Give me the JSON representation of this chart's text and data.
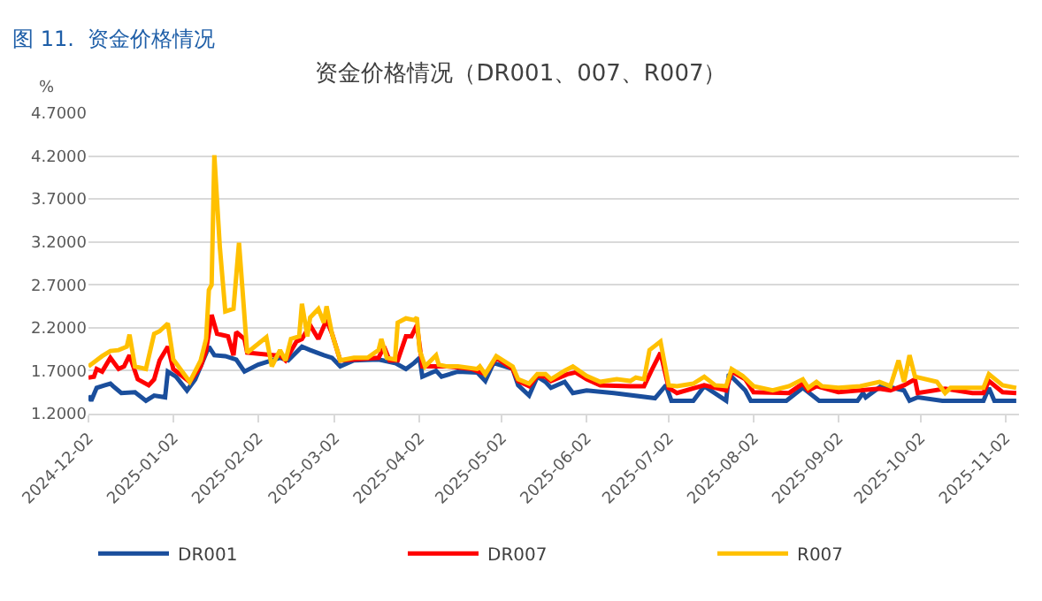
{
  "chart_data": {
    "type": "line",
    "title": "资金价格情况（DR001、007、R007）",
    "ylabel": "%",
    "annotations": [
      "图 11.  资金价格情况"
    ],
    "series": [
      {
        "name": "DR001",
        "color": "#1a4e9c",
        "x": [
          "2024-12-02",
          "2024-12-03",
          "2024-12-05",
          "2024-12-08",
          "2024-12-10",
          "2024-12-11",
          "2024-12-14",
          "2024-12-19",
          "2024-12-23",
          "2024-12-26",
          "2024-12-30",
          "2024-12-31",
          "2025-01-03",
          "2025-01-07",
          "2025-01-10",
          "2025-01-15",
          "2025-01-17",
          "2025-01-21",
          "2025-01-25",
          "2025-01-28",
          "2025-02-02",
          "2025-02-10",
          "2025-02-13",
          "2025-02-18",
          "2025-02-21",
          "2025-02-26",
          "2025-03-01",
          "2025-03-04",
          "2025-03-09",
          "2025-03-18",
          "2025-03-24",
          "2025-03-28",
          "2025-03-31",
          "2025-04-02",
          "2025-04-03",
          "2025-04-08",
          "2025-04-10",
          "2025-04-16",
          "2025-04-23",
          "2025-04-26",
          "2025-04-29",
          "2025-05-06",
          "2025-05-08",
          "2025-05-12",
          "2025-05-15",
          "2025-05-18",
          "2025-05-20",
          "2025-05-25",
          "2025-05-28",
          "2025-06-02",
          "2025-06-12",
          "2025-06-27",
          "2025-07-01",
          "2025-07-03",
          "2025-07-11",
          "2025-07-15",
          "2025-07-23",
          "2025-07-24",
          "2025-07-30",
          "2025-08-01",
          "2025-08-14",
          "2025-08-20",
          "2025-08-26",
          "2025-09-02",
          "2025-09-09",
          "2025-09-11",
          "2025-09-12",
          "2025-09-18",
          "2025-09-26",
          "2025-09-28",
          "2025-10-01",
          "2025-10-10",
          "2025-10-25",
          "2025-10-27",
          "2025-10-29",
          "2025-11-06"
        ],
        "values": [
          1.41,
          1.35,
          1.5,
          1.53,
          1.55,
          1.52,
          1.44,
          1.45,
          1.35,
          1.41,
          1.39,
          1.69,
          1.63,
          1.47,
          1.6,
          1.98,
          1.88,
          1.87,
          1.83,
          1.69,
          1.77,
          1.85,
          1.82,
          1.98,
          1.94,
          1.88,
          1.85,
          1.75,
          1.82,
          1.83,
          1.79,
          1.72,
          1.79,
          1.85,
          1.63,
          1.7,
          1.63,
          1.69,
          1.68,
          1.58,
          1.79,
          1.72,
          1.53,
          1.41,
          1.63,
          1.57,
          1.5,
          1.57,
          1.44,
          1.47,
          1.44,
          1.38,
          1.53,
          1.35,
          1.35,
          1.52,
          1.35,
          1.66,
          1.47,
          1.35,
          1.35,
          1.5,
          1.35,
          1.35,
          1.35,
          1.44,
          1.39,
          1.53,
          1.47,
          1.35,
          1.39,
          1.35,
          1.35,
          1.5,
          1.35,
          1.35
        ]
      },
      {
        "name": "DR007",
        "color": "#ff0000",
        "x": [
          "2024-12-02",
          "2024-12-04",
          "2024-12-05",
          "2024-12-07",
          "2024-12-10",
          "2024-12-13",
          "2024-12-15",
          "2024-12-17",
          "2024-12-20",
          "2024-12-24",
          "2024-12-26",
          "2024-12-28",
          "2024-12-31",
          "2025-01-02",
          "2025-01-08",
          "2025-01-12",
          "2025-01-14",
          "2025-01-16",
          "2025-01-18",
          "2025-01-22",
          "2025-01-24",
          "2025-01-25",
          "2025-01-28",
          "2025-01-29",
          "2025-02-08",
          "2025-02-10",
          "2025-02-12",
          "2025-02-16",
          "2025-02-18",
          "2025-02-21",
          "2025-02-24",
          "2025-02-27",
          "2025-03-01",
          "2025-03-04",
          "2025-03-18",
          "2025-03-20",
          "2025-03-22",
          "2025-03-25",
          "2025-03-28",
          "2025-03-30",
          "2025-04-01",
          "2025-04-03",
          "2025-04-12",
          "2025-04-21",
          "2025-04-26",
          "2025-04-30",
          "2025-05-06",
          "2025-05-08",
          "2025-05-12",
          "2025-05-15",
          "2025-05-18",
          "2025-05-20",
          "2025-05-26",
          "2025-05-29",
          "2025-06-02",
          "2025-06-07",
          "2025-06-18",
          "2025-06-23",
          "2025-06-26",
          "2025-06-29",
          "2025-07-02",
          "2025-07-05",
          "2025-07-15",
          "2025-07-23",
          "2025-07-25",
          "2025-07-30",
          "2025-08-02",
          "2025-08-15",
          "2025-08-20",
          "2025-08-22",
          "2025-08-25",
          "2025-09-02",
          "2025-09-17",
          "2025-09-21",
          "2025-09-26",
          "2025-09-30",
          "2025-10-01",
          "2025-10-11",
          "2025-10-21",
          "2025-10-25",
          "2025-10-27",
          "2025-11-01",
          "2025-11-06"
        ],
        "values": [
          1.62,
          1.63,
          1.72,
          1.69,
          1.85,
          1.72,
          1.75,
          1.88,
          1.6,
          1.53,
          1.6,
          1.82,
          1.98,
          1.72,
          1.57,
          1.75,
          1.94,
          2.35,
          2.13,
          2.1,
          1.88,
          2.15,
          2.07,
          1.91,
          1.88,
          1.88,
          1.82,
          2.04,
          2.07,
          2.23,
          2.07,
          2.29,
          2.13,
          1.82,
          1.85,
          1.98,
          1.82,
          1.82,
          2.1,
          2.1,
          2.23,
          1.75,
          1.75,
          1.72,
          1.66,
          1.85,
          1.72,
          1.58,
          1.52,
          1.64,
          1.63,
          1.58,
          1.66,
          1.68,
          1.6,
          1.53,
          1.52,
          1.52,
          1.72,
          1.91,
          1.5,
          1.44,
          1.53,
          1.47,
          1.69,
          1.6,
          1.45,
          1.44,
          1.55,
          1.47,
          1.52,
          1.45,
          1.49,
          1.47,
          1.53,
          1.6,
          1.44,
          1.49,
          1.44,
          1.44,
          1.58,
          1.45,
          1.44
        ]
      },
      {
        "name": "R007",
        "color": "#ffc000",
        "x": [
          "2024-12-02",
          "2024-12-07",
          "2024-12-10",
          "2024-12-13",
          "2024-12-16",
          "2024-12-17",
          "2024-12-19",
          "2024-12-23",
          "2024-12-26",
          "2024-12-28",
          "2024-12-31",
          "2025-01-02",
          "2025-01-08",
          "2025-01-12",
          "2025-01-14",
          "2025-01-15",
          "2025-01-16",
          "2025-01-17",
          "2025-01-19",
          "2025-01-21",
          "2025-01-24",
          "2025-01-26",
          "2025-01-29",
          "2025-02-05",
          "2025-02-07",
          "2025-02-10",
          "2025-02-12",
          "2025-02-14",
          "2025-02-17",
          "2025-02-18",
          "2025-02-20",
          "2025-02-21",
          "2025-02-24",
          "2025-02-26",
          "2025-02-27",
          "2025-03-01",
          "2025-03-04",
          "2025-03-09",
          "2025-03-14",
          "2025-03-18",
          "2025-03-19",
          "2025-03-21",
          "2025-03-24",
          "2025-03-25",
          "2025-03-28",
          "2025-03-31",
          "2025-04-01",
          "2025-04-02",
          "2025-04-04",
          "2025-04-08",
          "2025-04-09",
          "2025-04-12",
          "2025-04-16",
          "2025-04-23",
          "2025-04-24",
          "2025-04-26",
          "2025-04-30",
          "2025-05-06",
          "2025-05-08",
          "2025-05-12",
          "2025-05-15",
          "2025-05-18",
          "2025-05-20",
          "2025-05-25",
          "2025-05-28",
          "2025-06-02",
          "2025-06-07",
          "2025-06-13",
          "2025-06-18",
          "2025-06-20",
          "2025-06-23",
          "2025-06-25",
          "2025-06-29",
          "2025-07-02",
          "2025-07-05",
          "2025-07-11",
          "2025-07-15",
          "2025-07-19",
          "2025-07-23",
          "2025-07-25",
          "2025-07-29",
          "2025-08-02",
          "2025-08-09",
          "2025-08-15",
          "2025-08-20",
          "2025-08-22",
          "2025-08-25",
          "2025-08-27",
          "2025-09-02",
          "2025-09-10",
          "2025-09-17",
          "2025-09-21",
          "2025-09-24",
          "2025-09-26",
          "2025-09-28",
          "2025-09-30",
          "2025-10-08",
          "2025-10-11",
          "2025-10-13",
          "2025-10-21",
          "2025-10-25",
          "2025-10-27",
          "2025-11-01",
          "2025-11-06"
        ],
        "values": [
          1.75,
          1.87,
          1.93,
          1.94,
          1.98,
          2.12,
          1.75,
          1.72,
          2.13,
          2.16,
          2.25,
          1.83,
          1.57,
          1.82,
          2.07,
          2.64,
          2.7,
          4.21,
          3.14,
          2.39,
          2.42,
          3.19,
          1.91,
          2.09,
          1.75,
          1.94,
          1.82,
          2.07,
          2.1,
          2.48,
          2.1,
          2.32,
          2.42,
          2.26,
          2.45,
          2.13,
          1.82,
          1.85,
          1.85,
          1.94,
          2.07,
          1.85,
          1.83,
          2.26,
          2.31,
          2.29,
          2.32,
          1.94,
          1.75,
          1.88,
          1.77,
          1.75,
          1.75,
          1.72,
          1.75,
          1.66,
          1.87,
          1.75,
          1.6,
          1.55,
          1.66,
          1.66,
          1.6,
          1.7,
          1.75,
          1.64,
          1.57,
          1.6,
          1.58,
          1.62,
          1.6,
          1.94,
          2.04,
          1.53,
          1.52,
          1.55,
          1.63,
          1.53,
          1.52,
          1.72,
          1.64,
          1.52,
          1.47,
          1.52,
          1.6,
          1.5,
          1.57,
          1.52,
          1.5,
          1.52,
          1.57,
          1.52,
          1.82,
          1.57,
          1.88,
          1.63,
          1.57,
          1.44,
          1.5,
          1.5,
          1.5,
          1.66,
          1.53,
          1.5
        ]
      }
    ],
    "xlim": [
      "2024-12-02",
      "2025-11-07"
    ],
    "xticks": [
      "2024-12-02",
      "2025-01-02",
      "2025-02-02",
      "2025-03-02",
      "2025-04-02",
      "2025-05-02",
      "2025-06-02",
      "2025-07-02",
      "2025-08-02",
      "2025-09-02",
      "2025-10-02",
      "2025-11-02"
    ],
    "ylim": [
      1.2,
      4.7
    ],
    "yticks": [
      {
        "value": 1.2,
        "label": "1.2000"
      },
      {
        "value": 1.7,
        "label": "1.7000"
      },
      {
        "value": 2.2,
        "label": "2.2000"
      },
      {
        "value": 2.7,
        "label": "2.7000"
      },
      {
        "value": 3.2,
        "label": "3.2000"
      },
      {
        "value": 3.7,
        "label": "3.7000"
      },
      {
        "value": 4.2,
        "label": "4.2000"
      },
      {
        "value": 4.7,
        "label": "4.7000"
      }
    ],
    "grid": "y",
    "legend": "bottom",
    "marker": "none",
    "line_style": "solid"
  }
}
